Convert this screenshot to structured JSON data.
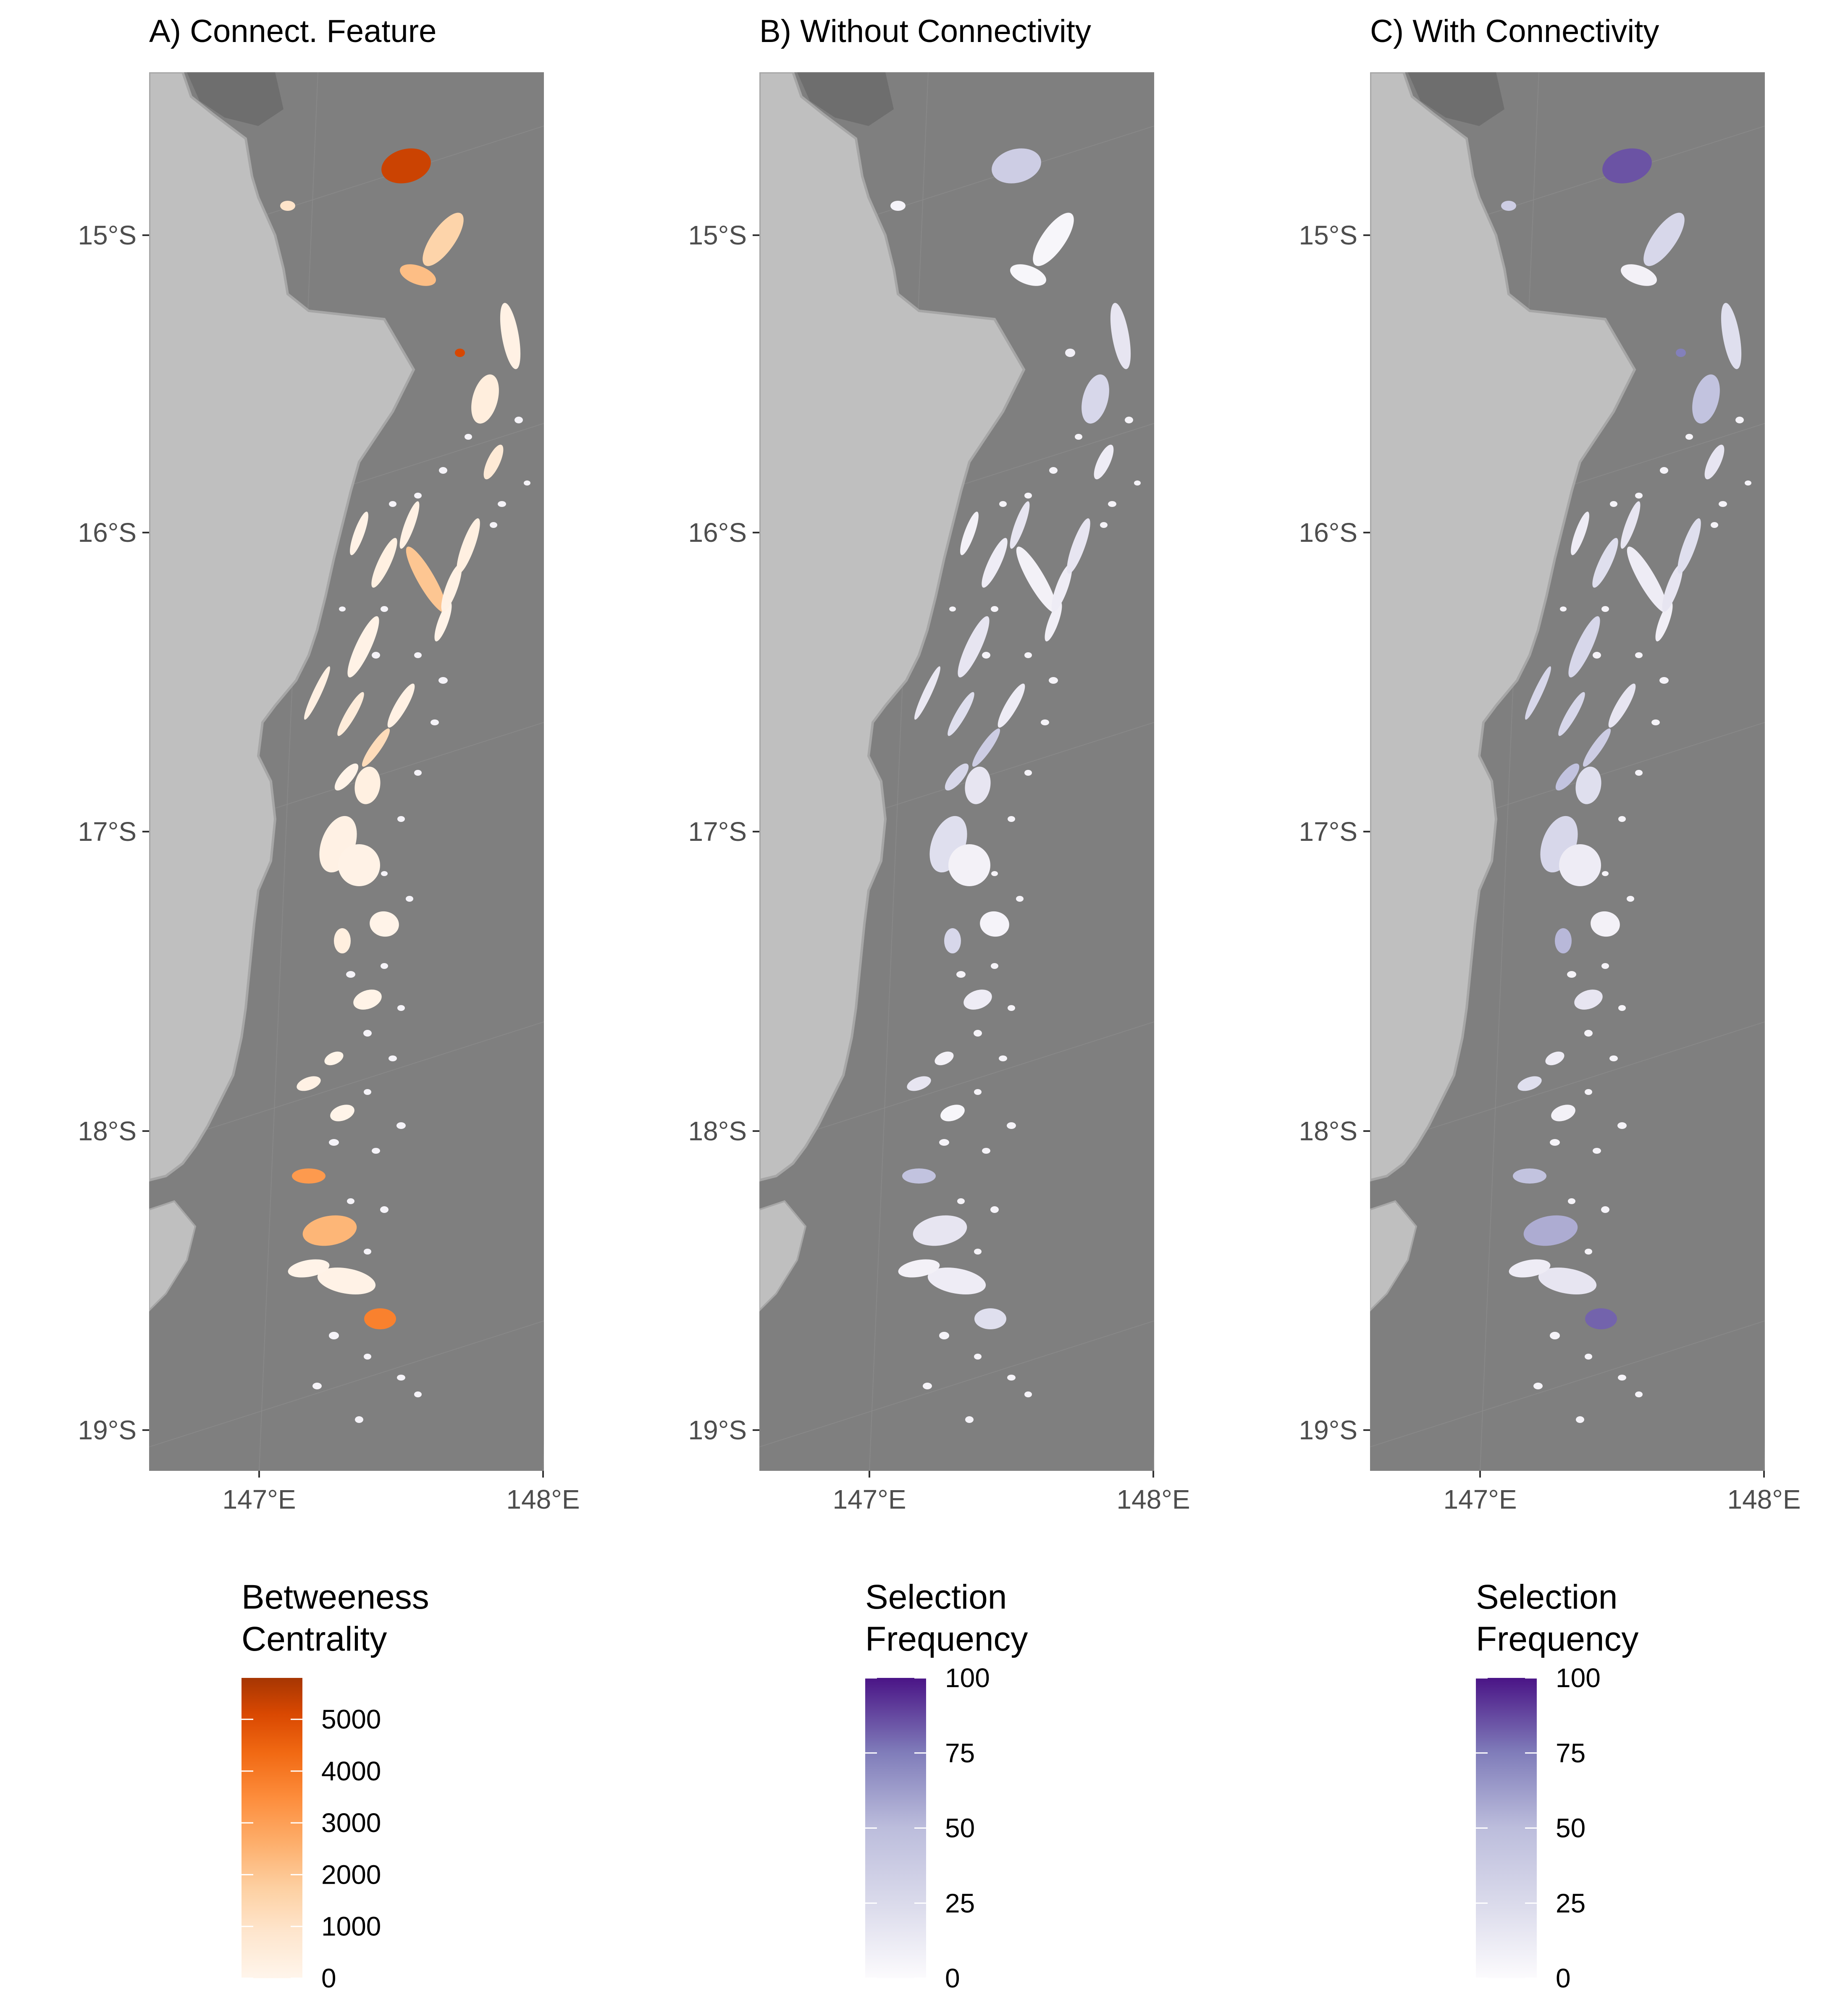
{
  "colors": {
    "ocean": "#7f7f7f",
    "land": "#bfbfbf",
    "oranges_low": "#fff5eb",
    "oranges_high": "#a63603",
    "purples_low": "#fcfbfd",
    "purples_high": "#3f007d"
  },
  "axes": {
    "y_ticks": [
      "15°S",
      "16°S",
      "17°S",
      "18°S",
      "19°S"
    ],
    "x_ticks": [
      "147°E",
      "148°E"
    ]
  },
  "panels": [
    {
      "title": "A) Connect. Feature",
      "legend": {
        "title_line1": "Betweeness",
        "title_line2": "Centrality",
        "ticks": [
          "0",
          "1000",
          "2000",
          "3000",
          "4000",
          "5000"
        ],
        "max_value": 5800
      }
    },
    {
      "title": "B) Without Connectivity",
      "legend": {
        "title_line1": "Selection",
        "title_line2": "Frequency",
        "ticks": [
          "0",
          "25",
          "50",
          "75",
          "100"
        ],
        "max_value": 100
      }
    },
    {
      "title": "C) With Connectivity",
      "legend": {
        "title_line1": "Selection",
        "title_line2": "Frequency",
        "ticks": [
          "0",
          "25",
          "50",
          "75",
          "100"
        ],
        "max_value": 100
      }
    }
  ],
  "reef_values": {
    "A": [
      3200,
      5200,
      2100,
      1500,
      900,
      5000,
      400,
      200,
      600,
      3000,
      3600,
      2300,
      250,
      150,
      300,
      200,
      1900,
      100,
      200,
      300,
      500,
      1200,
      200,
      150,
      100,
      300,
      200,
      150,
      350,
      120,
      80,
      60,
      200,
      150,
      100,
      90
    ],
    "B": [
      10,
      35,
      5,
      5,
      8,
      12,
      30,
      20,
      15,
      40,
      25,
      20,
      18,
      10,
      15,
      20,
      10,
      12,
      15,
      20,
      25,
      35,
      15,
      20,
      30,
      20,
      25,
      10,
      30,
      15,
      10,
      5,
      20,
      15,
      10,
      8
    ],
    "C": [
      95,
      85,
      10,
      30,
      35,
      70,
      40,
      25,
      20,
      40,
      80,
      50,
      30,
      15,
      25,
      20,
      15,
      12,
      20,
      25,
      30,
      35,
      20,
      30,
      40,
      25,
      30,
      15,
      45,
      20,
      15,
      10,
      25,
      20,
      15,
      10
    ]
  }
}
